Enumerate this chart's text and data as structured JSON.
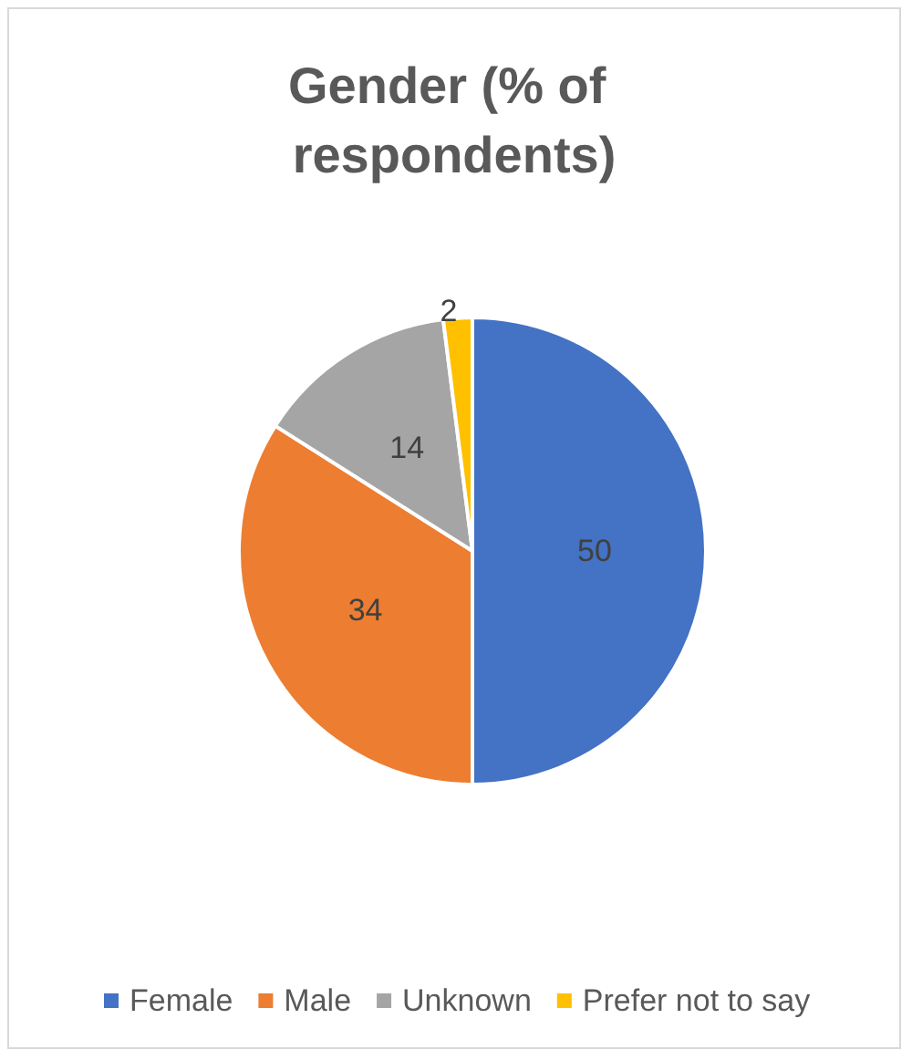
{
  "chart_data": {
    "type": "pie",
    "title": "Gender (% of respondents)",
    "categories": [
      "Female",
      "Male",
      "Unknown",
      "Prefer not to say"
    ],
    "values": [
      50,
      34,
      14,
      2
    ],
    "colors": [
      "#4472c4",
      "#ed7d31",
      "#a5a5a5",
      "#ffc000"
    ],
    "data_labels": true,
    "legend": "bottom"
  }
}
